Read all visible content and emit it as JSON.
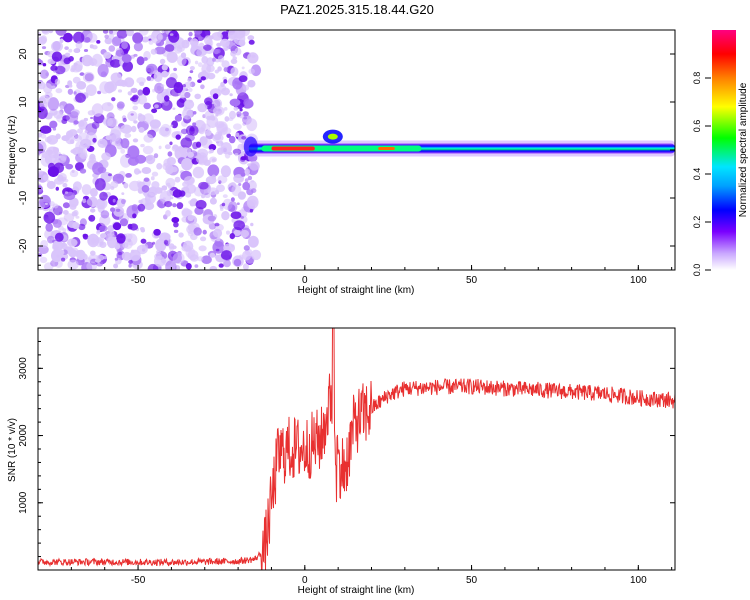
{
  "title": "PAZ1.2025.315.18.44.G20",
  "chart_data": [
    {
      "type": "heatmap",
      "name": "spectrogram",
      "xlabel": "Height of straight line (km)",
      "ylabel": "Frequency (Hz)",
      "xlim": [
        -80,
        111
      ],
      "ylim": [
        -25,
        25
      ],
      "xticks": [
        -50,
        0,
        50,
        100
      ],
      "yticks": [
        -20,
        -10,
        0,
        10,
        20
      ],
      "colorbar": {
        "label": "Normalized spectral amplitude",
        "range": [
          0.0,
          1.0
        ],
        "ticks": [
          "0.0",
          "0.2",
          "0.4",
          "0.6",
          "0.8"
        ],
        "tick_values": [
          0.0,
          0.2,
          0.4,
          0.6,
          0.8
        ],
        "colors": [
          "#ffffff",
          "#7a00ff",
          "#0000ff",
          "#00e5ff",
          "#00ff00",
          "#ffff00",
          "#ff0000",
          "#ff0080"
        ]
      },
      "noise_region_x": [
        -80,
        -17
      ],
      "ridge": {
        "start_x": -18,
        "freq_hz": 0.3,
        "core_x": [
          -13,
          35
        ],
        "peak_amplitude_x": [
          -10,
          3
        ],
        "bump_x": 6,
        "bump_freq_hz": 3.0
      }
    },
    {
      "type": "line",
      "name": "snr",
      "xlabel": "Height of straight line (km)",
      "ylabel": "SNR (10 * v/v)",
      "xlim": [
        -80,
        111
      ],
      "ylim": [
        0,
        3600
      ],
      "xticks": [
        -50,
        0,
        50,
        100
      ],
      "yticks": [
        1000,
        2000,
        3000
      ],
      "color": "#e83030",
      "series": [
        {
          "name": "SNR",
          "x": [
            -80,
            -60,
            -40,
            -20,
            -15,
            -12,
            -10,
            -8,
            -5,
            0,
            5,
            8,
            10,
            12,
            15,
            20,
            25,
            30,
            40,
            50,
            60,
            70,
            80,
            90,
            100,
            111
          ],
          "values": [
            120,
            120,
            115,
            130,
            160,
            300,
            1000,
            1700,
            1800,
            1800,
            1950,
            2600,
            1600,
            1500,
            2200,
            2400,
            2600,
            2700,
            2720,
            2730,
            2700,
            2680,
            2650,
            2620,
            2560,
            2520
          ]
        }
      ]
    }
  ]
}
